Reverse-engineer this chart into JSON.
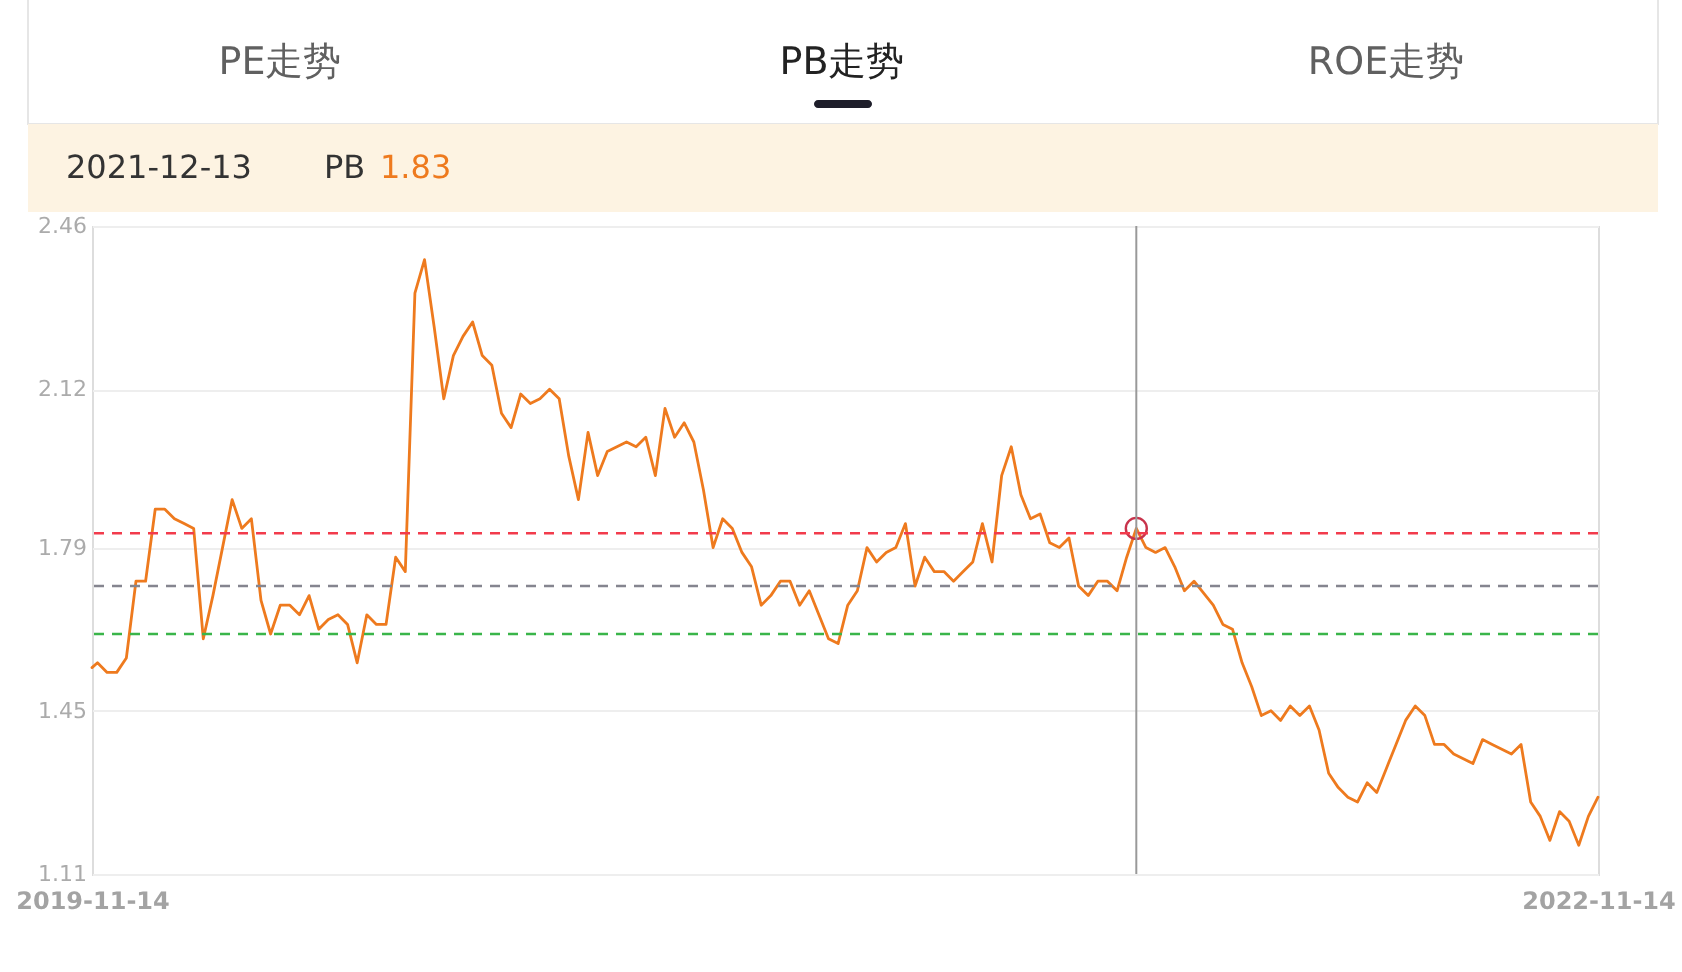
{
  "chart_data": {
    "type": "line",
    "title": "PB走势",
    "annotations": [
      "PE走势",
      "ROE走势",
      "2021-12-13",
      "1.83"
    ],
    "x": [
      "2019-11-14",
      "2019-11-18",
      "2019-11-25",
      "2019-12-02",
      "2019-12-09",
      "2019-12-16",
      "2019-12-23",
      "2019-12-30",
      "2020-01-06",
      "2020-01-13",
      "2020-01-20",
      "2020-01-27",
      "2020-02-03",
      "2020-02-10",
      "2020-02-17",
      "2020-02-24",
      "2020-03-02",
      "2020-03-09",
      "2020-03-16",
      "2020-03-23",
      "2020-03-30",
      "2020-04-06",
      "2020-04-13",
      "2020-04-20",
      "2020-04-27",
      "2020-05-04",
      "2020-05-11",
      "2020-05-18",
      "2020-05-25",
      "2020-06-01",
      "2020-06-08",
      "2020-06-15",
      "2020-06-22",
      "2020-06-29",
      "2020-07-06",
      "2020-07-13",
      "2020-07-20",
      "2020-07-27",
      "2020-08-03",
      "2020-08-10",
      "2020-08-17",
      "2020-08-24",
      "2020-08-31",
      "2020-09-07",
      "2020-09-14",
      "2020-09-21",
      "2020-09-28",
      "2020-10-05",
      "2020-10-12",
      "2020-10-19",
      "2020-10-26",
      "2020-11-02",
      "2020-11-09",
      "2020-11-16",
      "2020-11-23",
      "2020-11-30",
      "2020-12-07",
      "2020-12-14",
      "2020-12-21",
      "2020-12-28",
      "2021-01-04",
      "2021-01-11",
      "2021-01-18",
      "2021-01-25",
      "2021-02-01",
      "2021-02-08",
      "2021-02-15",
      "2021-02-22",
      "2021-03-01",
      "2021-03-08",
      "2021-03-15",
      "2021-03-22",
      "2021-03-29",
      "2021-04-05",
      "2021-04-12",
      "2021-04-19",
      "2021-04-26",
      "2021-05-03",
      "2021-05-10",
      "2021-05-17",
      "2021-05-24",
      "2021-05-31",
      "2021-06-07",
      "2021-06-14",
      "2021-06-21",
      "2021-06-28",
      "2021-07-05",
      "2021-07-12",
      "2021-07-19",
      "2021-07-26",
      "2021-08-02",
      "2021-08-09",
      "2021-08-16",
      "2021-08-23",
      "2021-08-30",
      "2021-09-06",
      "2021-09-13",
      "2021-09-20",
      "2021-09-27",
      "2021-10-04",
      "2021-10-11",
      "2021-10-18",
      "2021-10-25",
      "2021-11-01",
      "2021-11-08",
      "2021-11-15",
      "2021-11-22",
      "2021-11-29",
      "2021-12-06",
      "2021-12-13",
      "2021-12-20",
      "2021-12-27",
      "2022-01-03",
      "2022-01-10",
      "2022-01-17",
      "2022-01-24",
      "2022-02-07",
      "2022-02-14",
      "2022-02-21",
      "2022-02-28",
      "2022-03-07",
      "2022-03-14",
      "2022-03-21",
      "2022-03-28",
      "2022-04-04",
      "2022-04-11",
      "2022-04-18",
      "2022-04-25",
      "2022-05-02",
      "2022-05-09",
      "2022-05-16",
      "2022-05-23",
      "2022-05-30",
      "2022-06-06",
      "2022-06-13",
      "2022-06-20",
      "2022-06-27",
      "2022-07-04",
      "2022-07-11",
      "2022-07-18",
      "2022-07-25",
      "2022-08-01",
      "2022-08-08",
      "2022-08-15",
      "2022-08-22",
      "2022-08-29",
      "2022-09-05",
      "2022-09-12",
      "2022-09-19",
      "2022-09-26",
      "2022-10-03",
      "2022-10-10",
      "2022-10-17",
      "2022-10-24",
      "2022-10-31",
      "2022-11-07",
      "2022-11-14"
    ],
    "series": [
      {
        "name": "PB",
        "color": "#ee7a1e",
        "values": [
          1.54,
          1.55,
          1.53,
          1.53,
          1.56,
          1.72,
          1.72,
          1.87,
          1.87,
          1.85,
          1.84,
          1.83,
          1.6,
          1.69,
          1.79,
          1.89,
          1.83,
          1.85,
          1.68,
          1.61,
          1.67,
          1.67,
          1.65,
          1.69,
          1.62,
          1.64,
          1.65,
          1.63,
          1.55,
          1.65,
          1.63,
          1.63,
          1.77,
          1.74,
          2.32,
          2.39,
          2.25,
          2.1,
          2.19,
          2.23,
          2.26,
          2.19,
          2.17,
          2.07,
          2.04,
          2.11,
          2.09,
          2.1,
          2.12,
          2.1,
          1.98,
          1.89,
          2.03,
          1.94,
          1.99,
          2.0,
          2.01,
          2.0,
          2.02,
          1.94,
          2.08,
          2.02,
          2.05,
          2.01,
          1.91,
          1.79,
          1.85,
          1.83,
          1.78,
          1.75,
          1.67,
          1.69,
          1.72,
          1.72,
          1.67,
          1.7,
          1.65,
          1.6,
          1.59,
          1.67,
          1.7,
          1.79,
          1.76,
          1.78,
          1.79,
          1.84,
          1.71,
          1.77,
          1.74,
          1.74,
          1.72,
          1.74,
          1.76,
          1.84,
          1.76,
          1.94,
          2.0,
          1.9,
          1.85,
          1.86,
          1.8,
          1.79,
          1.81,
          1.71,
          1.69,
          1.72,
          1.72,
          1.7,
          1.77,
          1.83,
          1.79,
          1.78,
          1.79,
          1.75,
          1.7,
          1.72,
          1.67,
          1.63,
          1.62,
          1.55,
          1.5,
          1.44,
          1.45,
          1.43,
          1.46,
          1.44,
          1.46,
          1.41,
          1.32,
          1.29,
          1.27,
          1.26,
          1.3,
          1.28,
          1.33,
          1.38,
          1.43,
          1.46,
          1.44,
          1.38,
          1.38,
          1.36,
          1.35,
          1.34,
          1.39,
          1.38,
          1.37,
          1.36,
          1.38,
          1.26,
          1.23,
          1.18,
          1.24,
          1.22,
          1.17,
          1.23,
          1.27
        ]
      },
      {
        "type": "scatter",
        "color": "#c8334b",
        "x": [
          "2021-12-13"
        ],
        "values": [
          1.83
        ]
      }
    ],
    "xlim": [
      "2019-11-14",
      "2022-11-14"
    ],
    "xticks": [
      "2019-11-14",
      "2022-11-14"
    ],
    "ylim": [
      1.11,
      2.46
    ],
    "yticks": [
      1.11,
      1.45,
      1.79,
      2.12,
      2.46
    ],
    "grid": "y",
    "ref_lines": [
      {
        "axis": "y",
        "value": 1.82,
        "color": "#f23b4c",
        "line_style": "dashed"
      },
      {
        "axis": "y",
        "value": 1.71,
        "color": "#85858f",
        "line_style": "dashed"
      },
      {
        "axis": "y",
        "value": 1.61,
        "color": "#3ab54a",
        "line_style": "dashed"
      },
      {
        "axis": "x",
        "value": "2021-12-13",
        "color": "#999999",
        "line_style": "solid"
      }
    ]
  }
}
